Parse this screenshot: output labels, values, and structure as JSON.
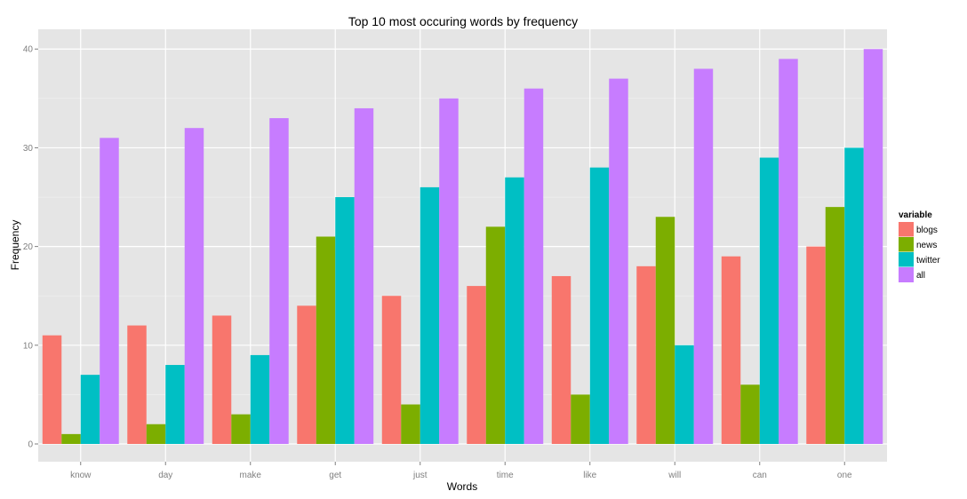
{
  "chart_data": {
    "type": "bar",
    "title": "Top 10 most occuring words by frequency",
    "xlabel": "Words",
    "ylabel": "Frequency",
    "categories": [
      "know",
      "day",
      "make",
      "get",
      "just",
      "time",
      "like",
      "will",
      "can",
      "one"
    ],
    "series": [
      {
        "name": "blogs",
        "color": "#F8766D",
        "values": [
          11,
          12,
          13,
          14,
          15,
          16,
          17,
          18,
          19,
          20
        ]
      },
      {
        "name": "news",
        "color": "#7CAE00",
        "values": [
          1,
          2,
          3,
          21,
          4,
          22,
          5,
          23,
          6,
          24
        ]
      },
      {
        "name": "twitter",
        "color": "#00BFC4",
        "values": [
          7,
          8,
          9,
          25,
          26,
          27,
          28,
          10,
          29,
          30
        ]
      },
      {
        "name": "all",
        "color": "#C77CFF",
        "values": [
          31,
          32,
          33,
          34,
          35,
          36,
          37,
          38,
          39,
          40
        ]
      }
    ],
    "ylim": [
      -1.8,
      42
    ],
    "yticks": [
      0,
      10,
      20,
      30,
      40
    ],
    "grid": true,
    "legend": {
      "title": "variable",
      "placement": "right"
    },
    "panel_background": "#E5E5E5",
    "grid_color": "#FFFFFF"
  }
}
